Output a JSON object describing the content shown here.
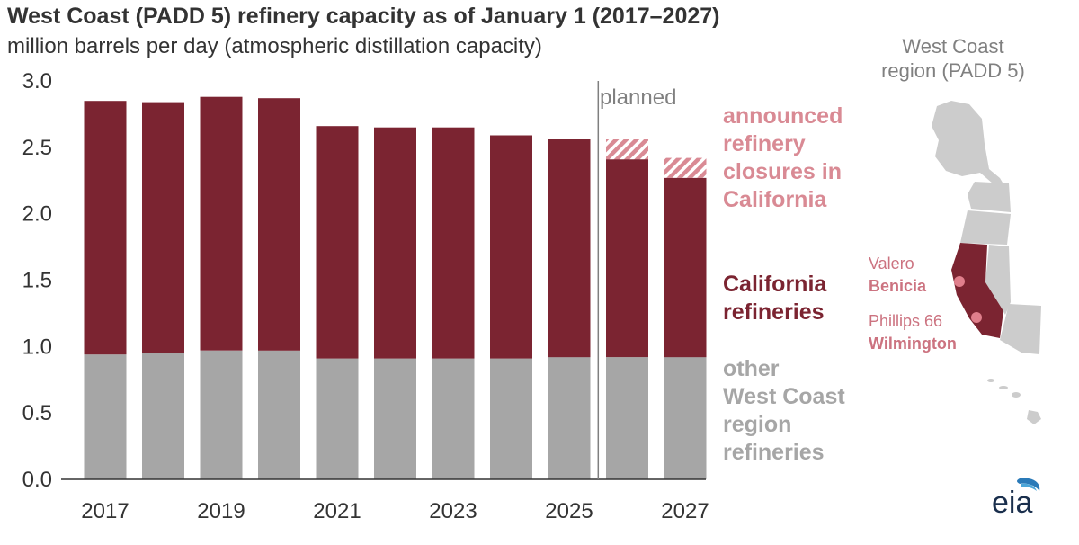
{
  "title": "West Coast (PADD 5) refinery capacity as of January 1 (2017–2027)",
  "subtitle": "million barrels per day (atmospheric distillation capacity)",
  "legend": {
    "announced": [
      "announced",
      "refinery",
      "closures in",
      "California"
    ],
    "california": [
      "California",
      "refineries"
    ],
    "other": [
      "other",
      "West Coast",
      "region",
      "refineries"
    ]
  },
  "map": {
    "caption_line1": "West Coast",
    "caption_line2": "region (PADD 5)",
    "site1_operator": "Valero",
    "site1_name": "Benicia",
    "site2_operator": "Phillips 66",
    "site2_name": "Wilmington"
  },
  "logo_text": "eia",
  "colors": {
    "california": "#7b2431",
    "other": "#a6a6a6",
    "announced": "#d98a94",
    "map_gray": "#cccccc",
    "map_site": "#e07f8c",
    "text_gray": "#808080",
    "divider": "#7f7f7f"
  },
  "chart_data": {
    "type": "bar",
    "stacked": true,
    "categories": [
      "2017",
      "2018",
      "2019",
      "2020",
      "2021",
      "2022",
      "2023",
      "2024",
      "2025",
      "2026",
      "2027"
    ],
    "x_tick_labels": [
      "2017",
      "2019",
      "2021",
      "2023",
      "2025",
      "2027"
    ],
    "series": [
      {
        "name": "other West Coast region refineries",
        "values": [
          0.94,
          0.95,
          0.97,
          0.97,
          0.91,
          0.91,
          0.91,
          0.91,
          0.92,
          0.92,
          0.92
        ]
      },
      {
        "name": "California refineries",
        "values": [
          1.91,
          1.89,
          1.91,
          1.9,
          1.75,
          1.74,
          1.74,
          1.68,
          1.64,
          1.49,
          1.35
        ]
      },
      {
        "name": "announced refinery closures in California",
        "values": [
          0,
          0,
          0,
          0,
          0,
          0,
          0,
          0,
          0,
          0.15,
          0.15
        ]
      }
    ],
    "ylim": [
      0,
      3.0
    ],
    "yticks": [
      "0.0",
      "0.5",
      "1.0",
      "1.5",
      "2.0",
      "2.5",
      "3.0"
    ],
    "annotation": "planned",
    "planned_from": "2026",
    "grid": false
  }
}
